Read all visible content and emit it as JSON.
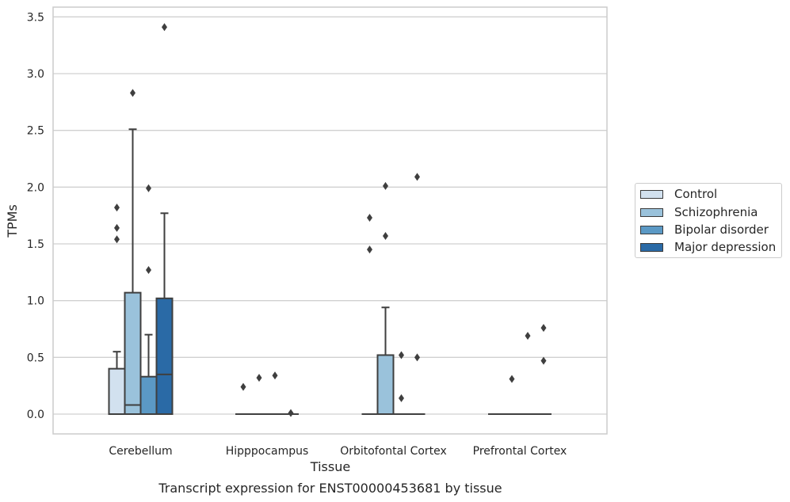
{
  "chart_data": {
    "type": "box",
    "xlabel": "Tissue",
    "ylabel": "TPMs",
    "caption": "Transcript expression for ENST00000453681 by tissue",
    "ylim": [
      -0.17,
      3.6
    ],
    "yticks": [
      0.0,
      0.5,
      1.0,
      1.5,
      2.0,
      2.5,
      3.0,
      3.5
    ],
    "ytick_labels": [
      "0.0",
      "0.5",
      "1.0",
      "1.5",
      "2.0",
      "2.5",
      "3.0",
      "3.5"
    ],
    "grid": "horizontal",
    "legend_position": "right",
    "categories": [
      "Cerebellum",
      "Hipppocampus",
      "Orbitofontal Cortex",
      "Prefrontal Cortex"
    ],
    "series": [
      {
        "name": "Control",
        "color": "#d2e1ef",
        "boxes": [
          {
            "q1": 0.0,
            "median": 0.0,
            "q3": 0.4,
            "whisker_low": 0.0,
            "whisker_high": 0.55,
            "outliers": [
              1.82,
              1.64,
              1.54
            ]
          },
          {
            "q1": 0.0,
            "median": 0.0,
            "q3": 0.0,
            "whisker_low": 0.0,
            "whisker_high": 0.0,
            "outliers": [
              0.24
            ]
          },
          {
            "q1": 0.0,
            "median": 0.0,
            "q3": 0.0,
            "whisker_low": 0.0,
            "whisker_high": 0.0,
            "outliers": [
              1.73,
              1.45
            ]
          },
          {
            "q1": 0.0,
            "median": 0.0,
            "q3": 0.0,
            "whisker_low": 0.0,
            "whisker_high": 0.0,
            "outliers": []
          }
        ]
      },
      {
        "name": "Schizophrenia",
        "color": "#9ac2db",
        "boxes": [
          {
            "q1": 0.0,
            "median": 0.08,
            "q3": 1.07,
            "whisker_low": 0.0,
            "whisker_high": 2.51,
            "outliers": [
              2.83
            ]
          },
          {
            "q1": 0.0,
            "median": 0.0,
            "q3": 0.0,
            "whisker_low": 0.0,
            "whisker_high": 0.0,
            "outliers": [
              0.32
            ]
          },
          {
            "q1": 0.0,
            "median": 0.0,
            "q3": 0.52,
            "whisker_low": 0.0,
            "whisker_high": 0.94,
            "outliers": [
              2.01,
              1.57
            ]
          },
          {
            "q1": 0.0,
            "median": 0.0,
            "q3": 0.0,
            "whisker_low": 0.0,
            "whisker_high": 0.0,
            "outliers": [
              0.31
            ]
          }
        ]
      },
      {
        "name": "Bipolar disorder",
        "color": "#5b99c5",
        "boxes": [
          {
            "q1": 0.0,
            "median": 0.0,
            "q3": 0.33,
            "whisker_low": 0.0,
            "whisker_high": 0.7,
            "outliers": [
              1.99,
              1.27
            ]
          },
          {
            "q1": 0.0,
            "median": 0.0,
            "q3": 0.0,
            "whisker_low": 0.0,
            "whisker_high": 0.0,
            "outliers": [
              0.34
            ]
          },
          {
            "q1": 0.0,
            "median": 0.0,
            "q3": 0.0,
            "whisker_low": 0.0,
            "whisker_high": 0.0,
            "outliers": [
              0.52,
              0.14
            ]
          },
          {
            "q1": 0.0,
            "median": 0.0,
            "q3": 0.0,
            "whisker_low": 0.0,
            "whisker_high": 0.0,
            "outliers": [
              0.69
            ]
          }
        ]
      },
      {
        "name": "Major depression",
        "color": "#2a6aa6",
        "boxes": [
          {
            "q1": 0.0,
            "median": 0.35,
            "q3": 1.02,
            "whisker_low": 0.0,
            "whisker_high": 1.77,
            "outliers": [
              3.41
            ]
          },
          {
            "q1": 0.0,
            "median": 0.0,
            "q3": 0.0,
            "whisker_low": 0.0,
            "whisker_high": 0.0,
            "outliers": [
              0.01
            ]
          },
          {
            "q1": 0.0,
            "median": 0.0,
            "q3": 0.0,
            "whisker_low": 0.0,
            "whisker_high": 0.0,
            "outliers": [
              2.09,
              0.5
            ]
          },
          {
            "q1": 0.0,
            "median": 0.0,
            "q3": 0.0,
            "whisker_low": 0.0,
            "whisker_high": 0.0,
            "outliers": [
              0.76,
              0.47
            ]
          }
        ]
      }
    ]
  }
}
